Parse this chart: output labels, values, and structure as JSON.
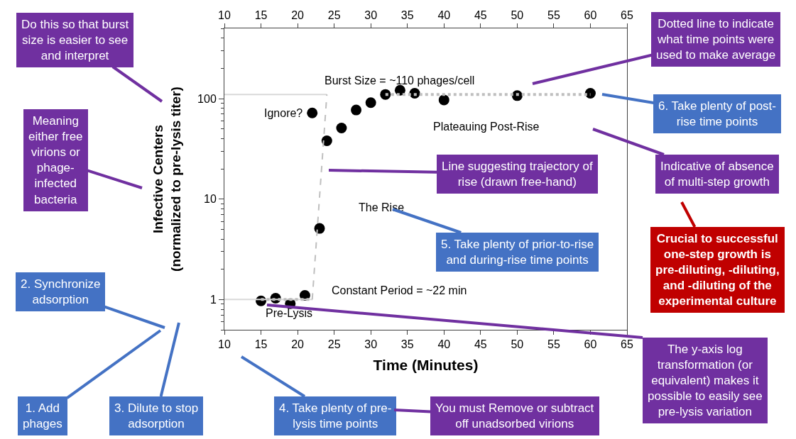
{
  "chart_data": {
    "type": "scatter",
    "xlabel": "Time (Minutes)",
    "ylabel": "Infective Centers (normalized to pre-lysis titer)",
    "log": "y",
    "xlim": [
      10,
      65
    ],
    "xticks": [
      10,
      15,
      20,
      25,
      30,
      35,
      40,
      45,
      50,
      55,
      60,
      65
    ],
    "x2lim": [
      10,
      65
    ],
    "x2ticks": [
      10,
      15,
      20,
      25,
      30,
      35,
      40,
      45,
      50,
      55,
      60,
      65
    ],
    "ylim": [
      0.5,
      500
    ],
    "yticks": [
      1,
      10,
      100
    ],
    "series": [
      {
        "color": "#000000",
        "marker": "circle",
        "x": [
          15,
          17,
          19,
          21,
          22,
          23,
          24,
          26,
          28,
          30,
          32,
          34,
          36,
          40,
          50,
          60
        ],
        "values": [
          0.97,
          1.03,
          0.91,
          1.1,
          72,
          5.1,
          38,
          51,
          77,
          91,
          110,
          121,
          113,
          97,
          107,
          113
        ]
      },
      {
        "type": "line",
        "color": "#d9d9d9",
        "line_style": "solid",
        "marker": "none",
        "x": [
          10,
          24
        ],
        "values": [
          110,
          110
        ]
      },
      {
        "type": "line",
        "color": "#d9d9d9",
        "line_style": "solid",
        "marker": "none",
        "x": [
          10,
          22
        ],
        "values": [
          1,
          1
        ]
      },
      {
        "type": "line",
        "color": "#bfbfbf",
        "line_style": "dashed",
        "marker": "none",
        "x": [
          22,
          24
        ],
        "values": [
          1,
          110
        ]
      },
      {
        "type": "line",
        "color": "#bfbfbf",
        "line_style": "dotted",
        "marker": "none",
        "x": [
          15,
          22
        ],
        "values": [
          1,
          1
        ]
      },
      {
        "type": "line",
        "color": "#bfbfbf",
        "line_style": "dotted",
        "marker": "none",
        "x": [
          32,
          60
        ],
        "values": [
          110,
          110
        ]
      }
    ],
    "annotations": [
      "Burst Size = ~110 phages/cell",
      {
        "text": "Ignore?",
        "x": 22,
        "y": 72
      },
      "Pre-Lysis",
      "Constant Period = ~22 min",
      "The Rise",
      "Plateauing Post-Rise",
      "Do this so that burst size is easier to see and interpret",
      "Meaning either free virions or phage-infected bacteria",
      "2. Synchronize adsorption",
      "1. Add phages",
      "3. Dilute to stop adsorption",
      "4. Take plenty of pre-lysis time points",
      "You must Remove or subtract off unadsorbed virions",
      "The y-axis log transformation (or equivalent) makes it possible to easily see pre-lysis variation",
      "Line suggesting trajectory of rise (drawn free-hand)",
      "5. Take plenty of prior-to-rise and during-rise time points",
      "Dotted line to indicate what time points were used to make average",
      "6. Take plenty of post-rise time points",
      "Indicative of absence of multi-step growth",
      "Crucial to successful one-step growth is pre-diluting, -diluting, and -diluting of the experimental culture"
    ]
  }
}
